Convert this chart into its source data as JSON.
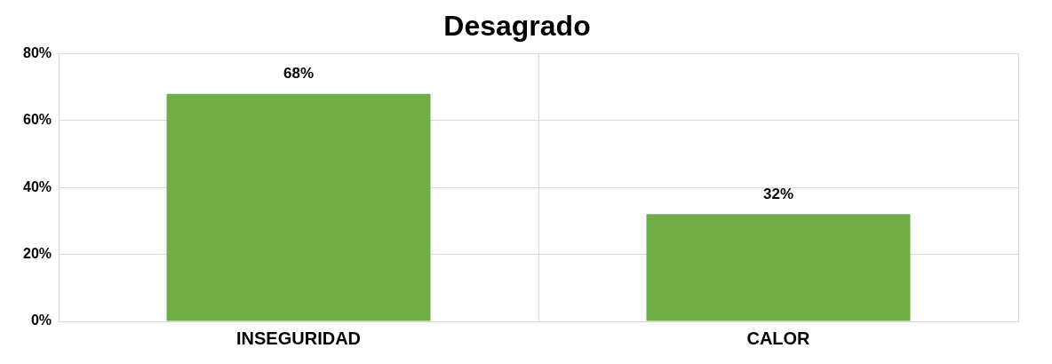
{
  "chart_data": {
    "type": "bar",
    "title": "Desagrado",
    "categories": [
      "INSEGURIDAD",
      "CALOR"
    ],
    "values": [
      68,
      32
    ],
    "color": "#70ad47",
    "value_labels": [
      "68%",
      "32%"
    ],
    "ylim": [
      0,
      80
    ],
    "yticks": [
      {
        "value": 0,
        "label": "0%"
      },
      {
        "value": 20,
        "label": "20%"
      },
      {
        "value": 40,
        "label": "40%"
      },
      {
        "value": 60,
        "label": "60%"
      },
      {
        "value": 80,
        "label": "80%"
      }
    ],
    "grid": true
  }
}
